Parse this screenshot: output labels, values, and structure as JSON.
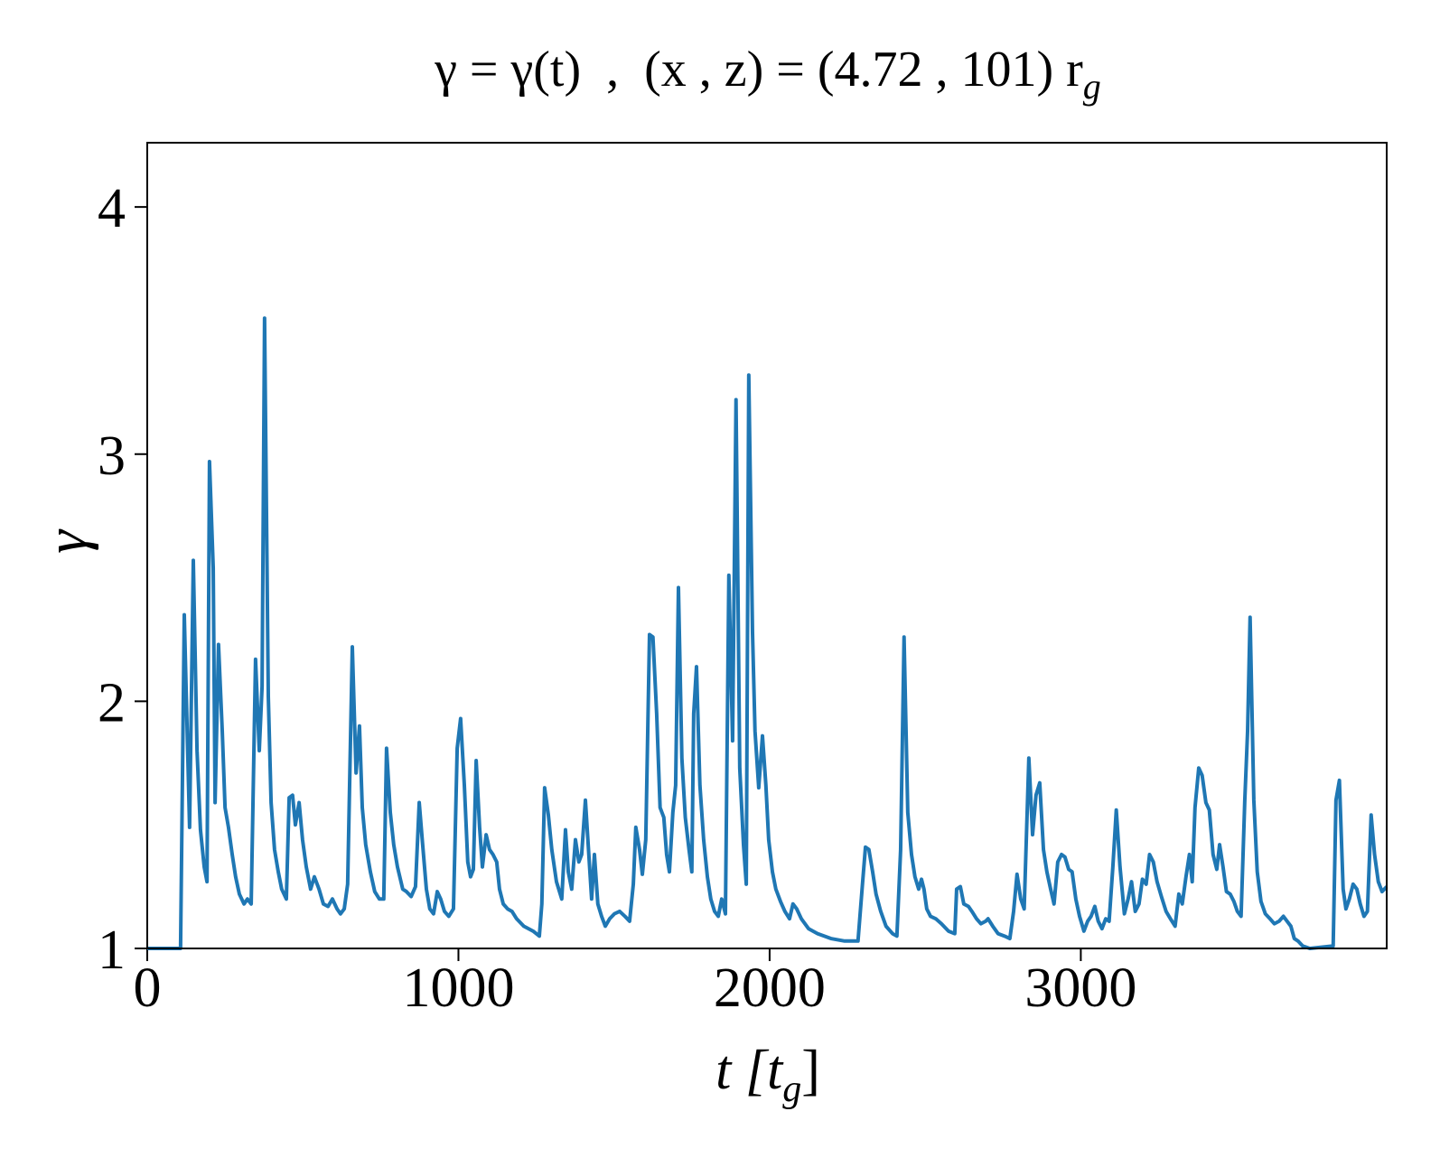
{
  "chart_data": {
    "type": "line",
    "title": "γ = γ(t)  ,  (x , z) = (4.72 , 101) r",
    "title_subscript": "g",
    "xlabel": "t [t",
    "xlabel_subscript": "g",
    "xlabel_end": "]",
    "ylabel": "γ",
    "color": "#1f77b4",
    "xlim": [
      0,
      3983
    ],
    "ylim": [
      1,
      4.26
    ],
    "xticks": [
      0,
      1000,
      2000,
      3000
    ],
    "yticks": [
      1,
      2,
      3,
      4
    ],
    "x": [
      0,
      107,
      119,
      136,
      148,
      160,
      171,
      183,
      192,
      200,
      212,
      218,
      229,
      241,
      250,
      261,
      273,
      284,
      296,
      311,
      322,
      334,
      348,
      360,
      369,
      377,
      389,
      398,
      409,
      421,
      432,
      447,
      456,
      467,
      476,
      488,
      499,
      511,
      525,
      537,
      552,
      566,
      581,
      595,
      610,
      621,
      633,
      644,
      659,
      671,
      682,
      691,
      702,
      717,
      731,
      746,
      760,
      769,
      781,
      792,
      804,
      821,
      833,
      848,
      862,
      874,
      885,
      897,
      908,
      920,
      932,
      943,
      955,
      969,
      984,
      996,
      1007,
      1019,
      1030,
      1039,
      1048,
      1057,
      1068,
      1077,
      1089,
      1100,
      1111,
      1123,
      1132,
      1144,
      1158,
      1172,
      1187,
      1210,
      1240,
      1260,
      1268,
      1277,
      1289,
      1300,
      1315,
      1332,
      1344,
      1353,
      1364,
      1376,
      1387,
      1396,
      1408,
      1419,
      1428,
      1437,
      1448,
      1460,
      1472,
      1486,
      1501,
      1518,
      1535,
      1550,
      1562,
      1570,
      1582,
      1591,
      1602,
      1614,
      1625,
      1637,
      1648,
      1660,
      1669,
      1678,
      1689,
      1698,
      1707,
      1718,
      1729,
      1741,
      1750,
      1756,
      1765,
      1776,
      1788,
      1800,
      1811,
      1823,
      1835,
      1846,
      1858,
      1869,
      1881,
      1892,
      1904,
      1916,
      1925,
      1933,
      1945,
      1953,
      1965,
      1977,
      1988,
      1997,
      2009,
      2020,
      2035,
      2049,
      2064,
      2075,
      2087,
      2102,
      2125,
      2154,
      2197,
      2241,
      2284,
      2299,
      2308,
      2319,
      2331,
      2342,
      2357,
      2374,
      2395,
      2409,
      2421,
      2432,
      2444,
      2456,
      2467,
      2479,
      2488,
      2496,
      2505,
      2517,
      2534,
      2552,
      2575,
      2595,
      2601,
      2613,
      2624,
      2639,
      2650,
      2665,
      2679,
      2694,
      2702,
      2717,
      2734,
      2755,
      2772,
      2784,
      2795,
      2807,
      2818,
      2833,
      2845,
      2856,
      2868,
      2880,
      2891,
      2903,
      2914,
      2926,
      2938,
      2949,
      2961,
      2972,
      2984,
      2996,
      3010,
      3022,
      3033,
      3045,
      3056,
      3068,
      3080,
      3091,
      3103,
      3114,
      3126,
      3140,
      3152,
      3163,
      3175,
      3187,
      3198,
      3210,
      3221,
      3233,
      3245,
      3259,
      3274,
      3288,
      3303,
      3315,
      3326,
      3338,
      3349,
      3358,
      3367,
      3379,
      3390,
      3402,
      3413,
      3425,
      3437,
      3446,
      3457,
      3468,
      3480,
      3492,
      3503,
      3515,
      3527,
      3536,
      3544,
      3556,
      3567,
      3579,
      3593,
      3608,
      3622,
      3637,
      3651,
      3663,
      3675,
      3686,
      3698,
      3713,
      3736,
      3811,
      3820,
      3831,
      3843,
      3852,
      3863,
      3875,
      3887,
      3898,
      3910,
      3921,
      3933,
      3944,
      3956,
      3968,
      3983
    ],
    "values": [
      1.0,
      1.0,
      2.35,
      1.49,
      2.57,
      1.8,
      1.48,
      1.33,
      1.27,
      2.97,
      2.54,
      1.59,
      2.23,
      1.88,
      1.57,
      1.49,
      1.38,
      1.29,
      1.22,
      1.18,
      1.2,
      1.18,
      2.17,
      1.8,
      2.06,
      3.55,
      2.02,
      1.59,
      1.4,
      1.31,
      1.24,
      1.2,
      1.61,
      1.62,
      1.5,
      1.59,
      1.44,
      1.33,
      1.24,
      1.29,
      1.24,
      1.18,
      1.17,
      1.2,
      1.16,
      1.14,
      1.16,
      1.26,
      2.22,
      1.71,
      1.9,
      1.57,
      1.42,
      1.31,
      1.23,
      1.2,
      1.2,
      1.81,
      1.55,
      1.42,
      1.33,
      1.24,
      1.23,
      1.21,
      1.25,
      1.59,
      1.42,
      1.24,
      1.16,
      1.14,
      1.23,
      1.2,
      1.15,
      1.13,
      1.16,
      1.81,
      1.93,
      1.66,
      1.35,
      1.29,
      1.32,
      1.76,
      1.49,
      1.33,
      1.46,
      1.4,
      1.38,
      1.35,
      1.24,
      1.18,
      1.16,
      1.15,
      1.12,
      1.09,
      1.07,
      1.05,
      1.18,
      1.65,
      1.54,
      1.4,
      1.27,
      1.2,
      1.48,
      1.31,
      1.24,
      1.44,
      1.35,
      1.38,
      1.6,
      1.38,
      1.2,
      1.38,
      1.18,
      1.13,
      1.09,
      1.12,
      1.14,
      1.15,
      1.13,
      1.11,
      1.26,
      1.49,
      1.4,
      1.3,
      1.44,
      2.27,
      2.26,
      1.95,
      1.57,
      1.53,
      1.38,
      1.31,
      1.55,
      1.66,
      2.46,
      1.77,
      1.53,
      1.4,
      1.31,
      1.95,
      2.14,
      1.66,
      1.44,
      1.29,
      1.2,
      1.15,
      1.13,
      1.2,
      1.14,
      2.51,
      1.84,
      3.22,
      1.73,
      1.42,
      1.26,
      3.32,
      2.28,
      1.88,
      1.65,
      1.86,
      1.66,
      1.44,
      1.31,
      1.24,
      1.19,
      1.15,
      1.12,
      1.18,
      1.16,
      1.12,
      1.08,
      1.06,
      1.04,
      1.03,
      1.03,
      1.27,
      1.41,
      1.4,
      1.31,
      1.22,
      1.15,
      1.09,
      1.06,
      1.05,
      1.4,
      2.26,
      1.55,
      1.38,
      1.29,
      1.24,
      1.28,
      1.24,
      1.16,
      1.13,
      1.12,
      1.1,
      1.07,
      1.06,
      1.24,
      1.25,
      1.18,
      1.17,
      1.15,
      1.12,
      1.1,
      1.11,
      1.12,
      1.09,
      1.06,
      1.05,
      1.04,
      1.15,
      1.3,
      1.2,
      1.16,
      1.77,
      1.46,
      1.62,
      1.67,
      1.4,
      1.31,
      1.24,
      1.18,
      1.35,
      1.38,
      1.37,
      1.32,
      1.31,
      1.2,
      1.13,
      1.07,
      1.11,
      1.13,
      1.17,
      1.11,
      1.08,
      1.12,
      1.11,
      1.33,
      1.56,
      1.33,
      1.14,
      1.2,
      1.27,
      1.15,
      1.18,
      1.28,
      1.26,
      1.38,
      1.35,
      1.27,
      1.21,
      1.15,
      1.12,
      1.09,
      1.22,
      1.18,
      1.29,
      1.38,
      1.27,
      1.57,
      1.73,
      1.7,
      1.59,
      1.56,
      1.38,
      1.32,
      1.42,
      1.33,
      1.23,
      1.22,
      1.19,
      1.15,
      1.13,
      1.6,
      1.88,
      2.34,
      1.6,
      1.31,
      1.19,
      1.14,
      1.12,
      1.1,
      1.11,
      1.13,
      1.11,
      1.09,
      1.04,
      1.03,
      1.01,
      1.0,
      1.01,
      1.6,
      1.68,
      1.24,
      1.16,
      1.2,
      1.26,
      1.24,
      1.18,
      1.13,
      1.15,
      1.54,
      1.38,
      1.27,
      1.23,
      1.25
    ]
  }
}
